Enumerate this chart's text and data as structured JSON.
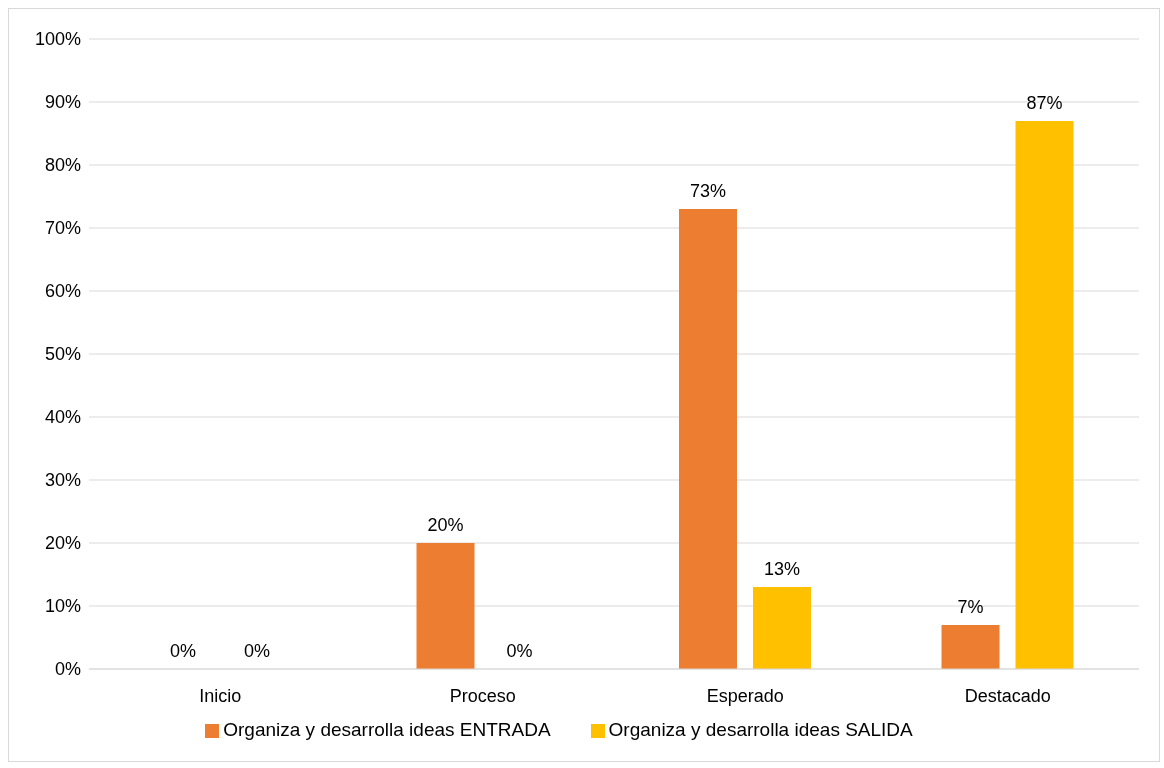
{
  "chart_data": {
    "type": "bar",
    "categories": [
      "Inicio",
      "Proceso",
      "Esperado",
      "Destacado"
    ],
    "series": [
      {
        "name": "Organiza y desarrolla ideas ENTRADA",
        "color": "#ed7d31",
        "values": [
          0,
          20,
          73,
          7
        ],
        "value_labels": [
          "0%",
          "20%",
          "73%",
          "7%"
        ]
      },
      {
        "name": "Organiza y desarrolla ideas SALIDA",
        "color": "#ffc000",
        "values": [
          0,
          0,
          13,
          87
        ],
        "value_labels": [
          "0%",
          "0%",
          "13%",
          "87%"
        ]
      }
    ],
    "ylim": [
      0,
      100
    ],
    "yticks": [
      {
        "value": 0,
        "label": "0%"
      },
      {
        "value": 10,
        "label": "10%"
      },
      {
        "value": 20,
        "label": "20%"
      },
      {
        "value": 30,
        "label": "30%"
      },
      {
        "value": 40,
        "label": "40%"
      },
      {
        "value": 50,
        "label": "50%"
      },
      {
        "value": 60,
        "label": "60%"
      },
      {
        "value": 70,
        "label": "70%"
      },
      {
        "value": 80,
        "label": "80%"
      },
      {
        "value": 90,
        "label": "90%"
      },
      {
        "value": 100,
        "label": "100%"
      }
    ],
    "grid": "y",
    "legend": "bottom"
  }
}
